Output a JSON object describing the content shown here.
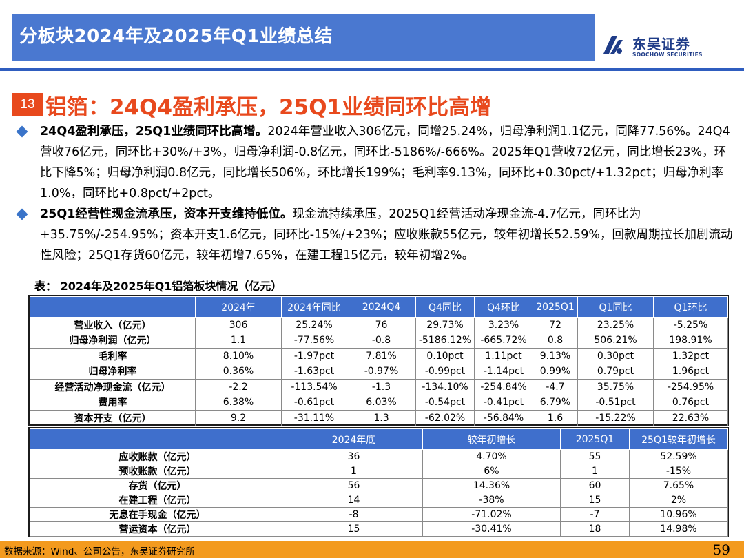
{
  "header": {
    "title": "分板块2024年及2025年Q1业绩总结",
    "logo_cn": "东吴证券",
    "logo_en": "SOOCHOW SECURITIES"
  },
  "section": {
    "number": "13",
    "title": "铝箔：24Q4盈利承压，25Q1业绩同环比高增"
  },
  "bullets": [
    {
      "bold": "24Q4盈利承压，25Q1业绩同环比高增。",
      "text": "2024年营业收入306亿元，同增25.24%，归母净利润1.1亿元，同降77.56%。24Q4营收76亿元，同环比+30%/+3%，归母净利润-0.8亿元，同环比-5186%/-666%。2025年Q1营收72亿元，同比增长23%，环比下降5%；归母净利润0.8亿元，同比增长506%，环比增长199%；毛利率9.13%，同环比+0.30pct/+1.32pct；归母净利率1.0%，同环比+0.8pct/+2pct。"
    },
    {
      "bold": "25Q1经营性现金流承压，资本开支维持低位。",
      "text": "现金流持续承压，2025Q1经营活动净现金流-4.7亿元，同环比为+35.75%/-254.95%；资本开支1.6亿元，同环比-15%/+23%；应收账款55亿元，较年初增长52.59%，回款周期拉长加剧流动性风险；25Q1存货60亿元，较年初增7.65%，在建工程15亿元，较年初增2%。"
    }
  ],
  "table1": {
    "caption": "表：  2024年及2025年Q1铝箔板块情况（亿元）",
    "headers": [
      "",
      "2024年",
      "2024年同比",
      "2024Q4",
      "Q4同比",
      "Q4环比",
      "2025Q1",
      "Q1同比",
      "Q1环比"
    ],
    "rows": [
      [
        "营业收入（亿元）",
        "306",
        "25.24%",
        "76",
        "29.73%",
        "3.23%",
        "72",
        "23.25%",
        "-5.25%"
      ],
      [
        "归母净利润（亿元）",
        "1.1",
        "-77.56%",
        "-0.8",
        "-5186.12%",
        "-665.72%",
        "0.8",
        "506.21%",
        "198.91%"
      ],
      [
        "毛利率",
        "8.10%",
        "-1.97pct",
        "7.81%",
        "0.10pct",
        "1.11pct",
        "9.13%",
        "0.30pct",
        "1.32pct"
      ],
      [
        "归母净利率",
        "0.36%",
        "-1.63pct",
        "-0.97%",
        "-0.99pct",
        "-1.14pct",
        "0.99%",
        "0.79pct",
        "1.96pct"
      ],
      [
        "经营活动净现金流（亿元）",
        "-2.2",
        "-113.54%",
        "-1.3",
        "-134.10%",
        "-254.84%",
        "-4.7",
        "35.75%",
        "-254.95%"
      ],
      [
        "费用率",
        "6.38%",
        "-0.61pct",
        "6.03%",
        "-0.54pct",
        "-0.41pct",
        "6.79%",
        "-0.51pct",
        "0.76pct"
      ],
      [
        "资本开支（亿元）",
        "9.2",
        "-31.11%",
        "1.3",
        "-62.02%",
        "-56.84%",
        "1.6",
        "-15.22%",
        "22.63%"
      ]
    ]
  },
  "table2": {
    "headers": [
      "",
      "2024年底",
      "较年初增长",
      "2025Q1",
      "25Q1较年初增长"
    ],
    "rows": [
      [
        "应收账款（亿元）",
        "36",
        "4.70%",
        "55",
        "52.59%"
      ],
      [
        "预收账款（亿元）",
        "1",
        "6%",
        "1",
        "-15%"
      ],
      [
        "存货（亿元）",
        "56",
        "14.36%",
        "60",
        "7.65%"
      ],
      [
        "在建工程（亿元）",
        "14",
        "-38%",
        "15",
        "2%"
      ],
      [
        "无息在手现金（亿元）",
        "-8",
        "-71.02%",
        "-7",
        "10.96%"
      ],
      [
        "营运资本（亿元）",
        "15",
        "-30.41%",
        "18",
        "14.98%"
      ]
    ]
  },
  "footer": {
    "source": "数据来源：Wind、公司公告，东吴证券研究所",
    "page": "59"
  },
  "colors": {
    "title_bar": "#4a78d0",
    "accent": "#e8491d",
    "table_header": "#3f6fcc",
    "footer_bar": "#f39a1e"
  }
}
